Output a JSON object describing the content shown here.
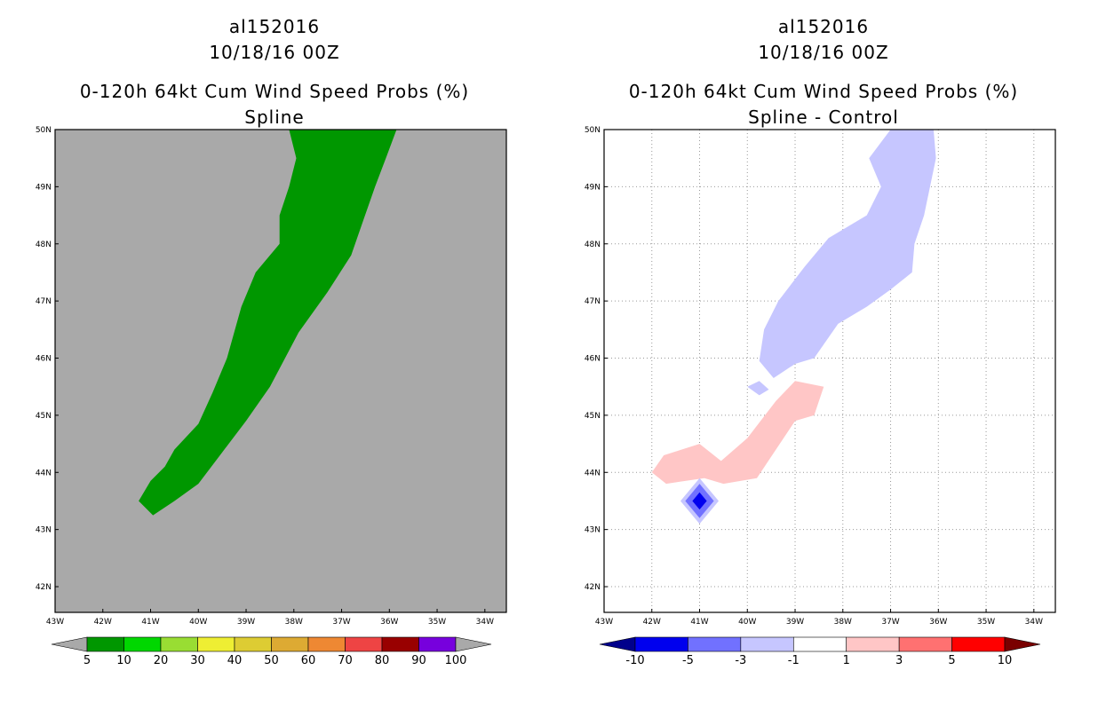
{
  "chart_data": [
    {
      "type": "filled-contour-map",
      "title_lines": [
        "al152016",
        "10/18/16 00Z",
        "0-120h 64kt Cum Wind Speed Probs (%)",
        "Spline"
      ],
      "x_ticks": [
        "43W",
        "42W",
        "41W",
        "40W",
        "39W",
        "38W",
        "37W",
        "36W",
        "35W",
        "34W"
      ],
      "y_ticks": [
        "42N",
        "43N",
        "44N",
        "45N",
        "46N",
        "47N",
        "48N",
        "49N",
        "50N"
      ],
      "xlim": [
        -43.0,
        -33.55
      ],
      "ylim": [
        41.55,
        50.0
      ],
      "background_color": "#a9a9a9",
      "regions": [
        {
          "level": "5-10",
          "color": "#009700",
          "outline": [
            [
              -38.1,
              50
            ],
            [
              -35.85,
              50
            ],
            [
              -36.05,
              49.55
            ],
            [
              -36.3,
              49
            ],
            [
              -36.55,
              48.4
            ],
            [
              -36.8,
              47.8
            ],
            [
              -37.3,
              47.15
            ],
            [
              -37.9,
              46.45
            ],
            [
              -38.5,
              45.5
            ],
            [
              -39.0,
              44.9
            ],
            [
              -39.5,
              44.35
            ],
            [
              -40.0,
              43.8
            ],
            [
              -40.5,
              43.5
            ],
            [
              -40.95,
              43.25
            ],
            [
              -41.25,
              43.5
            ],
            [
              -41.0,
              43.85
            ],
            [
              -40.7,
              44.1
            ],
            [
              -40.5,
              44.4
            ],
            [
              -40.0,
              44.85
            ],
            [
              -39.7,
              45.4
            ],
            [
              -39.4,
              46.0
            ],
            [
              -39.1,
              46.9
            ],
            [
              -38.8,
              47.5
            ],
            [
              -38.3,
              48.0
            ],
            [
              -38.3,
              48.5
            ],
            [
              -38.1,
              49.0
            ],
            [
              -37.95,
              49.5
            ],
            [
              -38.1,
              50
            ]
          ]
        }
      ],
      "colorbar": {
        "labels": [
          "5",
          "10",
          "20",
          "30",
          "40",
          "50",
          "60",
          "70",
          "80",
          "90",
          "100"
        ],
        "colors": [
          "#009700",
          "#00d700",
          "#99dd33",
          "#eeee33",
          "#ddcc33",
          "#ddaa33",
          "#ee8833",
          "#ee4444",
          "#990000",
          "#7700dd"
        ],
        "end_colors": [
          "#a9a9a9",
          "#a9a9a9"
        ]
      }
    },
    {
      "type": "filled-contour-map",
      "title_lines": [
        "al152016",
        "10/18/16 00Z",
        "0-120h 64kt Cum Wind Speed Probs (%)",
        "Spline - Control"
      ],
      "x_ticks": [
        "43W",
        "42W",
        "41W",
        "40W",
        "39W",
        "38W",
        "37W",
        "36W",
        "35W",
        "34W"
      ],
      "y_ticks": [
        "42N",
        "43N",
        "44N",
        "45N",
        "46N",
        "47N",
        "48N",
        "49N",
        "50N"
      ],
      "xlim": [
        -43.0,
        -33.55
      ],
      "ylim": [
        41.55,
        50.0
      ],
      "background_color": "#ffffff",
      "grid": true,
      "regions": [
        {
          "level": "-3 to -1",
          "color": "#c6c6ff",
          "outline": [
            [
              -37.0,
              50
            ],
            [
              -36.1,
              50
            ],
            [
              -36.05,
              49.5
            ],
            [
              -36.3,
              48.5
            ],
            [
              -36.5,
              48.0
            ],
            [
              -36.55,
              47.5
            ],
            [
              -37.0,
              47.2
            ],
            [
              -37.5,
              46.9
            ],
            [
              -38.1,
              46.6
            ],
            [
              -38.6,
              46.0
            ],
            [
              -39.0,
              45.9
            ],
            [
              -39.45,
              45.65
            ],
            [
              -39.75,
              45.95
            ],
            [
              -39.65,
              46.5
            ],
            [
              -39.35,
              47.0
            ],
            [
              -38.8,
              47.6
            ],
            [
              -38.3,
              48.1
            ],
            [
              -37.5,
              48.5
            ],
            [
              -37.2,
              49.0
            ],
            [
              -37.45,
              49.5
            ],
            [
              -37.0,
              50
            ]
          ]
        },
        {
          "level": "-3 to -1",
          "color": "#c6c6ff",
          "outline": [
            [
              -40.0,
              45.5
            ],
            [
              -39.75,
              45.6
            ],
            [
              -39.55,
              45.45
            ],
            [
              -39.75,
              45.35
            ],
            [
              -40.0,
              45.5
            ]
          ]
        },
        {
          "level": "1 to 3",
          "color": "#ffc6c6",
          "outline": [
            [
              -39.0,
              45.6
            ],
            [
              -38.4,
              45.5
            ],
            [
              -38.6,
              45.0
            ],
            [
              -39.0,
              44.9
            ],
            [
              -39.4,
              44.4
            ],
            [
              -39.8,
              43.9
            ],
            [
              -40.5,
              43.8
            ],
            [
              -40.9,
              43.9
            ],
            [
              -41.7,
              43.8
            ],
            [
              -42.0,
              44.0
            ],
            [
              -41.75,
              44.3
            ],
            [
              -41.0,
              44.5
            ],
            [
              -40.55,
              44.2
            ],
            [
              -40.0,
              44.6
            ],
            [
              -39.4,
              45.25
            ],
            [
              -39.0,
              45.6
            ]
          ]
        },
        {
          "level": "-3 to -1",
          "color": "#c6c6ff",
          "outline": [
            [
              -41.0,
              43.9
            ],
            [
              -40.6,
              43.5
            ],
            [
              -41.0,
              43.1
            ],
            [
              -41.4,
              43.5
            ],
            [
              -41.0,
              43.9
            ]
          ]
        },
        {
          "level": "-5 to -3",
          "color": "#7171ff",
          "outline": [
            [
              -41.0,
              43.8
            ],
            [
              -40.7,
              43.5
            ],
            [
              -41.0,
              43.2
            ],
            [
              -41.3,
              43.5
            ],
            [
              -41.0,
              43.8
            ]
          ]
        },
        {
          "level": "-10 to -5",
          "color": "#0000ee",
          "outline": [
            [
              -41.0,
              43.65
            ],
            [
              -40.85,
              43.5
            ],
            [
              -41.0,
              43.35
            ],
            [
              -41.15,
              43.5
            ],
            [
              -41.0,
              43.65
            ]
          ]
        }
      ],
      "colorbar": {
        "labels": [
          "-10",
          "-5",
          "-3",
          "-1",
          "1",
          "3",
          "5",
          "10"
        ],
        "colors": [
          "#0000ee",
          "#7171ff",
          "#c6c6ff",
          "#ffffff",
          "#ffc6c6",
          "#ff7171",
          "#ff0000"
        ],
        "end_colors": [
          "#00008b",
          "#7a0000"
        ]
      }
    }
  ]
}
